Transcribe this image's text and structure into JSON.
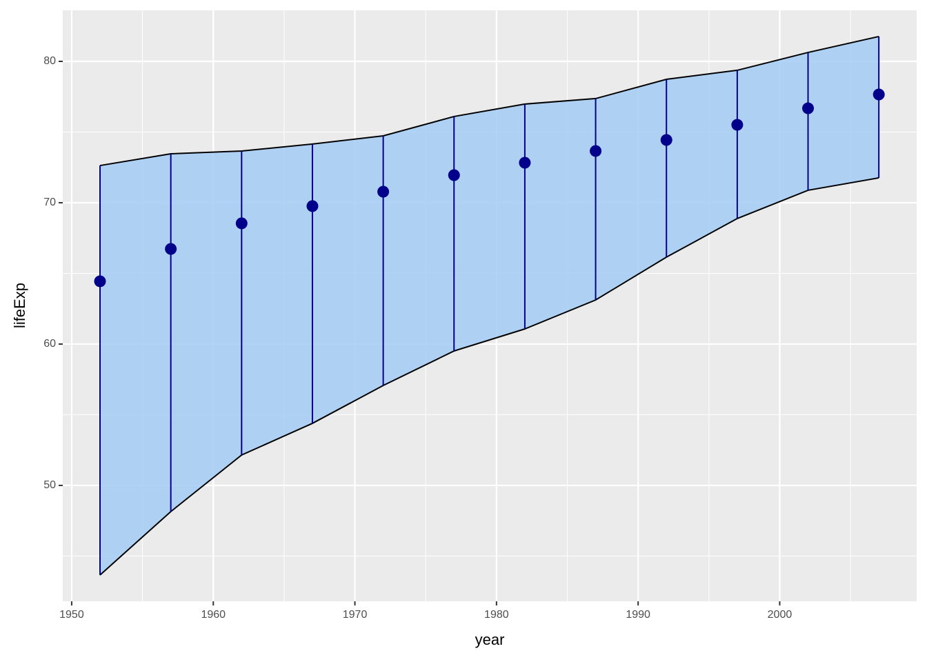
{
  "chart_data": {
    "type": "pointrange_ribbon",
    "xlabel": "year",
    "ylabel": "lifeExp",
    "x": [
      1952,
      1957,
      1962,
      1967,
      1972,
      1977,
      1982,
      1987,
      1992,
      1997,
      2002,
      2007
    ],
    "values": [
      64.44,
      66.73,
      68.54,
      69.76,
      70.78,
      71.95,
      72.83,
      73.66,
      74.44,
      75.51,
      76.68,
      77.66
    ],
    "lower": [
      43.66,
      48.15,
      52.15,
      54.39,
      57.07,
      59.51,
      61.07,
      63.12,
      66.15,
      68.88,
      70.88,
      71.76
    ],
    "upper": [
      72.63,
      73.46,
      73.66,
      74.15,
      74.73,
      76.1,
      76.98,
      77.37,
      78.73,
      79.37,
      80.63,
      81.76
    ],
    "color": "#00008b",
    "fill": "#a3cbf5",
    "outline": "#000000",
    "xlim": [
      1949.37,
      2009.67
    ],
    "ylim": [
      41.8,
      83.61
    ],
    "xticks": [
      1950,
      1960,
      1970,
      1980,
      1990,
      2000
    ],
    "yticks": [
      50,
      60,
      70,
      80
    ],
    "grid": true
  }
}
